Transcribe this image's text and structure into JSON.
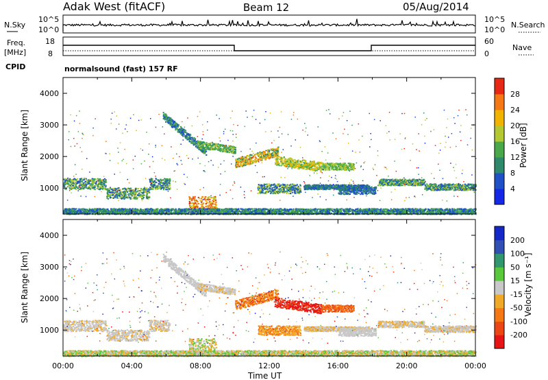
{
  "header": {
    "station": "Adak West (fitACF)",
    "beam": "Beam 12",
    "date": "05/Aug/2014"
  },
  "strip_labels": {
    "nsky": "N.Sky",
    "nsearch": "N.Search",
    "freq": "Freq.",
    "freq_unit": "[MHz]",
    "cpid": "CPID",
    "nave": "Nave",
    "program": "normalsound (fast) 157 RF"
  },
  "strip_ticks": {
    "nsky_left": [
      "10^5",
      "10^0"
    ],
    "nsky_right": [
      "10^5",
      "10^0"
    ],
    "freq_left": [
      "18",
      "8"
    ],
    "nave_right": [
      "60",
      "0"
    ]
  },
  "chart_data": [
    {
      "type": "heatmap",
      "name": "power",
      "ylabel": "Slant Range [km]",
      "xlabel": "Time UT",
      "xlim": [
        0,
        24
      ],
      "ylim": [
        180,
        4500
      ],
      "x_ticks": [
        "00:00",
        "04:00",
        "08:00",
        "12:00",
        "16:00",
        "20:00",
        "00:00"
      ],
      "y_ticks": [
        1000,
        2000,
        3000,
        4000
      ],
      "colorbar": {
        "label": "Power [dB]",
        "ticks": [
          4,
          8,
          12,
          16,
          20,
          24,
          28
        ],
        "colors": [
          "#1428e6",
          "#2050c8",
          "#2e8a6a",
          "#4aa84a",
          "#b4c832",
          "#f0b400",
          "#f57814",
          "#e62814"
        ]
      }
    },
    {
      "type": "heatmap",
      "name": "velocity",
      "ylabel": "Slant Range [km]",
      "xlabel": "Time UT",
      "xlim": [
        0,
        24
      ],
      "ylim": [
        180,
        4500
      ],
      "x_ticks": [
        "00:00",
        "04:00",
        "08:00",
        "12:00",
        "16:00",
        "20:00",
        "00:00"
      ],
      "y_ticks": [
        1000,
        2000,
        3000,
        4000
      ],
      "colorbar": {
        "label": "Velocity [m s⁻¹]",
        "ticks": [
          "200",
          "100",
          "50",
          "15",
          "-15",
          "-50",
          "-100",
          "-200"
        ],
        "colors": [
          "#1428c8",
          "#3250b4",
          "#32966e",
          "#5ac83c",
          "#c8c8c8",
          "#f0aa28",
          "#f57814",
          "#eb4614",
          "#e61414"
        ]
      }
    }
  ]
}
